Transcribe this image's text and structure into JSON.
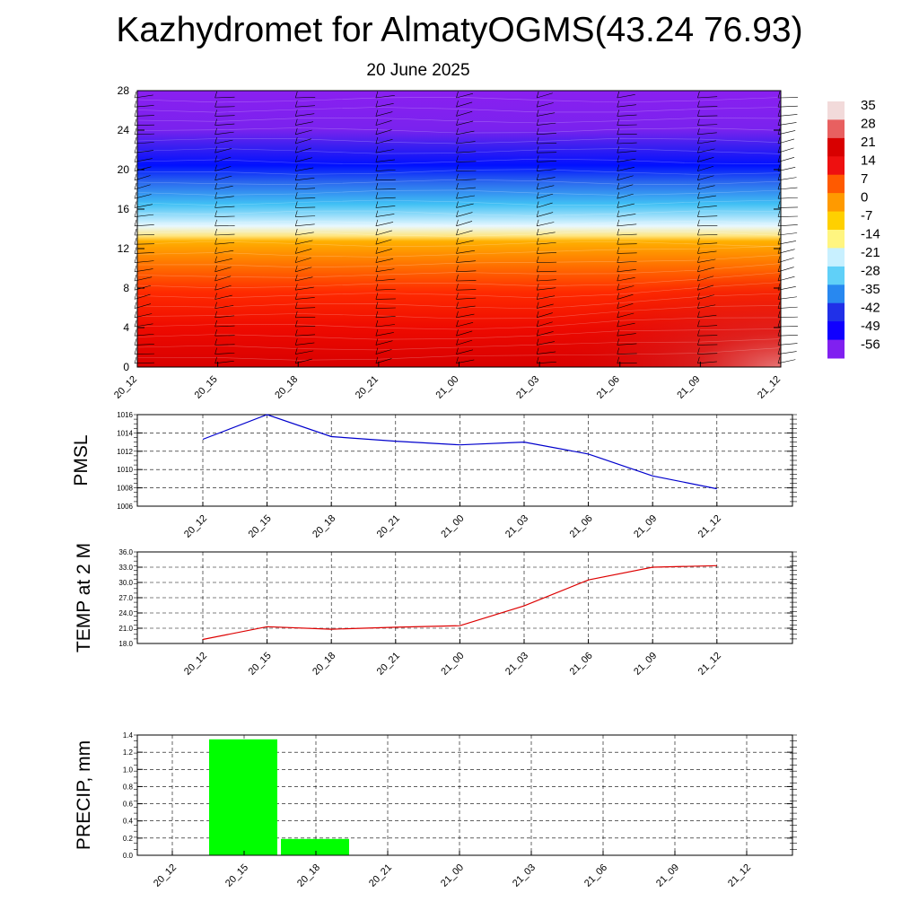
{
  "title": "Kazhydromet for AlmatyOGMS(43.24 76.93)",
  "subtitle": "20 June 2025",
  "time_labels": [
    "20_12",
    "20_15",
    "20_18",
    "20_21",
    "21_00",
    "21_03",
    "21_06",
    "21_09",
    "21_12"
  ],
  "chart_data": [
    {
      "type": "heatmap",
      "name": "vertical-cross-section",
      "ylim": [
        0,
        28
      ],
      "y_ticks": [
        0,
        4,
        8,
        12,
        16,
        20,
        24,
        28
      ],
      "x_ticks": [
        "20_12",
        "20_15",
        "20_18",
        "20_21",
        "21_00",
        "21_03",
        "21_06",
        "21_09",
        "21_12"
      ],
      "colorbar": {
        "labels": [
          "35",
          "28",
          "21",
          "14",
          "7",
          "0",
          "-7",
          "-14",
          "-21",
          "-28",
          "-35",
          "-42",
          "-49",
          "-56"
        ],
        "colors": [
          "#f2dada",
          "#e86060",
          "#d80000",
          "#ee1010",
          "#ff5a00",
          "#ff9a00",
          "#ffd000",
          "#fff580",
          "#c8f0ff",
          "#60d0f8",
          "#2888f0",
          "#2030e8",
          "#1000ff",
          "#8020f0"
        ]
      }
    },
    {
      "type": "line",
      "name": "pmsl",
      "ylabel": "PMSL",
      "ylim": [
        1006,
        1016
      ],
      "y_ticks": [
        "1006",
        "1008",
        "1010",
        "1012",
        "1014",
        "1016"
      ],
      "categories": [
        "20_12",
        "20_15",
        "20_18",
        "20_21",
        "21_00",
        "21_03",
        "21_06",
        "21_09",
        "21_12"
      ],
      "values": [
        1013.3,
        1016.0,
        1013.6,
        1013.1,
        1012.7,
        1013.0,
        1011.7,
        1009.3,
        1007.9
      ],
      "color": "#0000cc"
    },
    {
      "type": "line",
      "name": "temp2m",
      "ylabel": "TEMP at 2 M",
      "ylim": [
        18,
        36
      ],
      "y_ticks": [
        "18.0",
        "21.0",
        "24.0",
        "27.0",
        "30.0",
        "33.0",
        "36.0"
      ],
      "categories": [
        "20_12",
        "20_15",
        "20_18",
        "20_21",
        "21_00",
        "21_03",
        "21_06",
        "21_09",
        "21_12"
      ],
      "values": [
        18.8,
        21.3,
        20.8,
        21.2,
        21.5,
        25.4,
        30.5,
        33.0,
        33.3
      ],
      "color": "#dd0000"
    },
    {
      "type": "bar",
      "name": "precip",
      "ylabel": "PRECIP, mm",
      "ylim": [
        0,
        1.4
      ],
      "y_ticks": [
        "0.0",
        "0.2",
        "0.4",
        "0.6",
        "0.8",
        "1.0",
        "1.2",
        "1.4"
      ],
      "categories": [
        "20_12",
        "20_15",
        "20_18",
        "20_21",
        "21_00",
        "21_03",
        "21_06",
        "21_09",
        "21_12"
      ],
      "values": [
        0,
        1.35,
        0.19,
        0,
        0,
        0,
        0,
        0,
        0
      ],
      "color": "#00ff00"
    }
  ]
}
